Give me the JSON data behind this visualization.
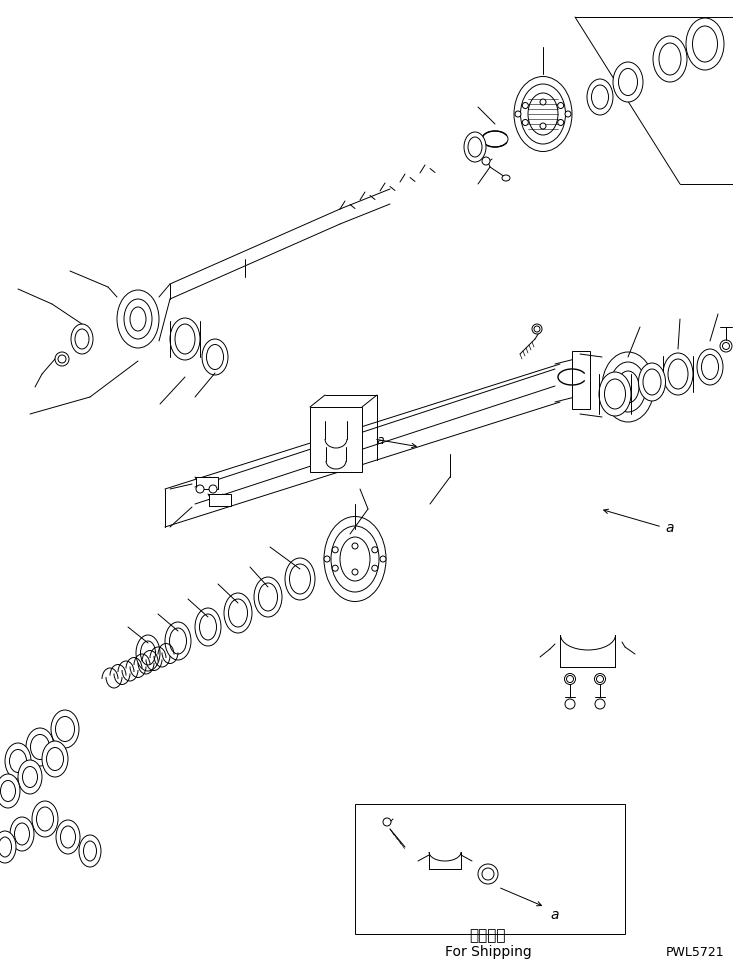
{
  "bg_color": "#ffffff",
  "line_color": "#000000",
  "title_jp": "運搶部品",
  "title_en": "For Shipping",
  "part_number": "PWL5721",
  "fig_width": 7.33,
  "fig_height": 9.7,
  "dpi": 100
}
